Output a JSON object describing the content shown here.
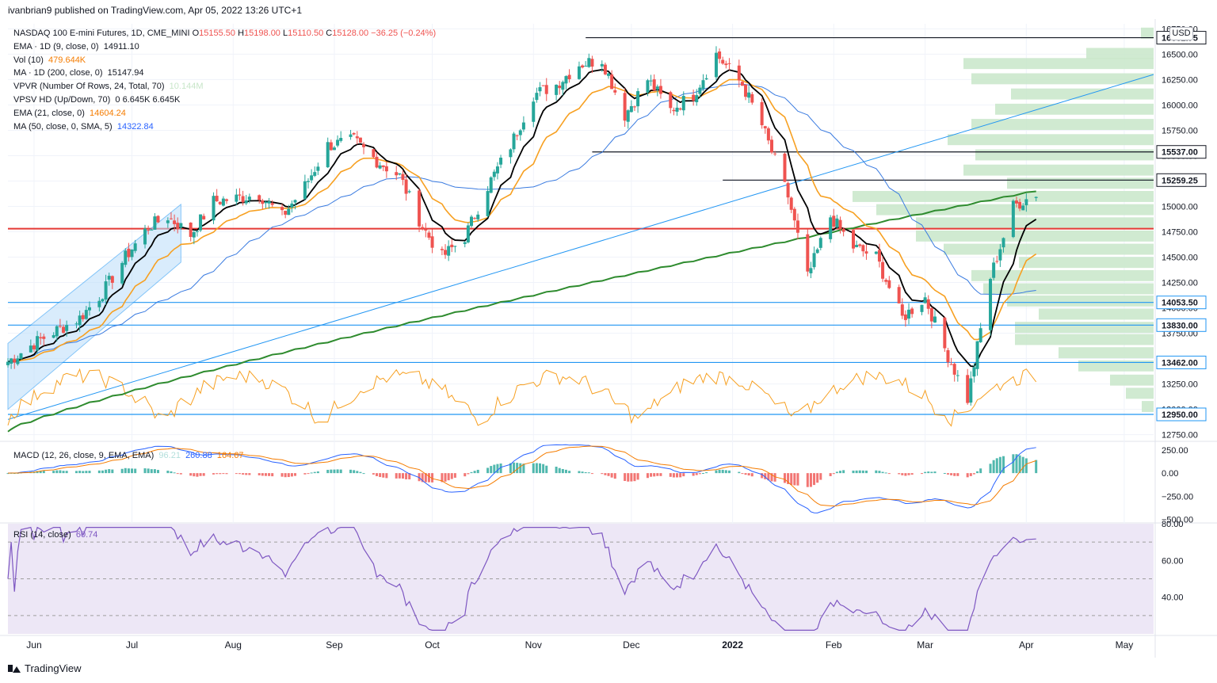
{
  "header": {
    "published_by": "ivanbrian9 published on TradingView.com, Apr 05, 2022 13:26 UTC+1"
  },
  "legend": {
    "main": {
      "title": "NASDAQ 100 E-mini Futures, 1D, CME_MINI",
      "o_label": "O",
      "o": "15155.50",
      "h_label": "H",
      "h": "15198.00",
      "l_label": "L",
      "l": "15110.50",
      "c_label": "C",
      "c": "15128.00",
      "chg": "−36.25 (−0.24%)"
    },
    "rows": [
      {
        "label": "EMA · 1D (9, close, 0)",
        "value": "14911.10",
        "color": "#131722"
      },
      {
        "label": "Vol (10)",
        "value": "479.644K",
        "color": "#f57c00"
      },
      {
        "label": "MA · 1D (200, close, 0)",
        "value": "15147.94",
        "color": "#131722"
      },
      {
        "label": "VPVR (Number Of Rows, 24, Total, 70)",
        "value": "10.144M",
        "color": "#c8e6c9"
      },
      {
        "label": "VPSV HD (Up/Down, 70)",
        "value": "0  6.645K  6.645K",
        "color": "#131722"
      },
      {
        "label": "EMA (21, close, 0)",
        "value": "14604.24",
        "color": "#f57c00"
      },
      {
        "label": "MA (50, close, 0, SMA, 5)",
        "value": "14322.84",
        "color": "#2962ff"
      }
    ],
    "macd": {
      "label": "MACD (12, 26, close, 9, EMA, EMA)",
      "v1": "96.21",
      "v2": "260.88",
      "v3": "164.67"
    },
    "rsi": {
      "label": "RSI (14, close)",
      "value": "60.74"
    }
  },
  "currency": "USD",
  "footer": {
    "brand": "TradingView"
  },
  "colors": {
    "up": "#26a69a",
    "down": "#ef5350",
    "ema9": "#000000",
    "ema21": "#f7a021",
    "ma50": "#3a7be0",
    "ma200": "#2e8b2e",
    "vpvr": "#c8e6c9",
    "support": "#2196f3",
    "key": "#e53935",
    "rsi_bg": "#ede7f6",
    "rsi_line": "#7e57c2"
  },
  "chart_data": [
    {
      "type": "line",
      "title": "NASDAQ 100 E-mini Futures, 1D, CME_MINI",
      "yaxis_ticks": [
        "16750.00",
        "16500.00",
        "16250.00",
        "16000.00",
        "15750.00",
        "15500.00",
        "15250.00",
        "15000.00",
        "14750.00",
        "14500.00",
        "14250.00",
        "14000.00",
        "13750.00",
        "13500.00",
        "13250.00",
        "13000.00",
        "12750.00"
      ],
      "ylim": [
        12700,
        16800
      ],
      "xaxis_ticks": [
        "Jun",
        "Jul",
        "Aug",
        "Sep",
        "Oct",
        "Nov",
        "Dec",
        "2022",
        "Feb",
        "Mar",
        "Apr",
        "May"
      ],
      "price_labels": [
        "16662.75",
        "15537.00",
        "15259.25",
        "14053.50",
        "13830.00",
        "13462.00",
        "12950.00"
      ],
      "horizontal_levels": [
        16662.75,
        15537.0,
        15259.25,
        14053.5,
        13830.0,
        13462.0,
        12950.0,
        14780
      ],
      "close_path": [
        [
          "2021-05-24",
          13470
        ],
        [
          "2021-06-01",
          13650
        ],
        [
          "2021-06-08",
          13780
        ],
        [
          "2021-06-15",
          13900
        ],
        [
          "2021-06-22",
          14150
        ],
        [
          "2021-06-29",
          14500
        ],
        [
          "2021-07-06",
          14800
        ],
        [
          "2021-07-12",
          14900
        ],
        [
          "2021-07-19",
          14720
        ],
        [
          "2021-07-26",
          15050
        ],
        [
          "2021-08-02",
          15080
        ],
        [
          "2021-08-09",
          15120
        ],
        [
          "2021-08-16",
          14900
        ],
        [
          "2021-08-23",
          15200
        ],
        [
          "2021-08-30",
          15600
        ],
        [
          "2021-09-07",
          15650
        ],
        [
          "2021-09-14",
          15450
        ],
        [
          "2021-09-21",
          15300
        ],
        [
          "2021-09-28",
          14800
        ],
        [
          "2021-10-04",
          14500
        ],
        [
          "2021-10-11",
          14700
        ],
        [
          "2021-10-18",
          15200
        ],
        [
          "2021-10-25",
          15600
        ],
        [
          "2021-11-01",
          16100
        ],
        [
          "2021-11-08",
          16200
        ],
        [
          "2021-11-15",
          16400
        ],
        [
          "2021-11-22",
          16450
        ],
        [
          "2021-11-29",
          15900
        ],
        [
          "2021-12-06",
          16250
        ],
        [
          "2021-12-13",
          15950
        ],
        [
          "2021-12-20",
          16100
        ],
        [
          "2021-12-27",
          16500
        ],
        [
          "2022-01-04",
          16200
        ],
        [
          "2022-01-10",
          15800
        ],
        [
          "2022-01-18",
          15100
        ],
        [
          "2022-01-24",
          14300
        ],
        [
          "2022-01-31",
          14900
        ],
        [
          "2022-02-07",
          14600
        ],
        [
          "2022-02-14",
          14500
        ],
        [
          "2022-02-22",
          13900
        ],
        [
          "2022-03-01",
          14100
        ],
        [
          "2022-03-07",
          13600
        ],
        [
          "2022-03-14",
          13100
        ],
        [
          "2022-03-21",
          14300
        ],
        [
          "2022-03-28",
          15000
        ],
        [
          "2022-04-04",
          15128
        ]
      ],
      "indicators": {
        "ema9": 14911.1,
        "ema21": 14604.24,
        "ma50": 14322.84,
        "ma200": 15147.94
      }
    },
    {
      "type": "bar",
      "title": "MACD (12, 26, close, 9, EMA, EMA)",
      "yaxis_ticks": [
        "250.00",
        "0.00",
        "−250.00",
        "−500.00"
      ],
      "ylim": [
        -520,
        300
      ],
      "series": [
        {
          "name": "Histogram",
          "values": [
            96.21
          ]
        },
        {
          "name": "MACD",
          "values": [
            260.88
          ]
        },
        {
          "name": "Signal",
          "values": [
            164.67
          ]
        }
      ]
    },
    {
      "type": "line",
      "title": "RSI (14, close)",
      "yaxis_ticks": [
        "80.00",
        "60.00",
        "40.00"
      ],
      "ylim": [
        20,
        80
      ],
      "series": [
        {
          "name": "RSI",
          "values": [
            60.74
          ]
        }
      ]
    }
  ]
}
